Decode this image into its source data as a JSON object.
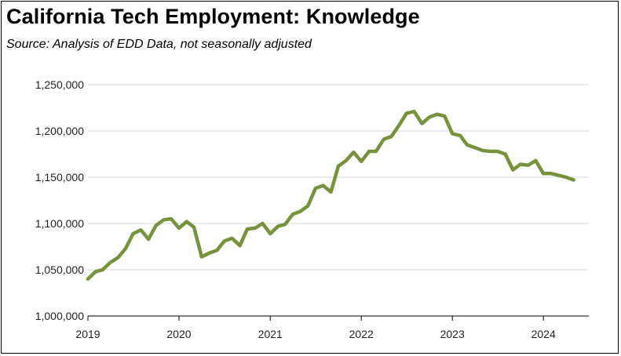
{
  "header": {
    "title": "California Tech Employment:  Knowledge",
    "subtitle": "Source:  Analysis of EDD Data, not seasonally adjusted"
  },
  "colors": {
    "line": "#76923C",
    "grid": "#D9D9D9",
    "axis": "#000000"
  },
  "chart_data": {
    "type": "line",
    "title": "California Tech Employment:  Knowledge",
    "subtitle": "Source:  Analysis of EDD Data, not seasonally adjusted",
    "xlabel": "",
    "ylabel": "",
    "ylim": [
      1000000,
      1250000
    ],
    "yticks": [
      1000000,
      1050000,
      1100000,
      1150000,
      1200000,
      1250000
    ],
    "ytick_labels": [
      "1,000,000",
      "1,050,000",
      "1,100,000",
      "1,150,000",
      "1,200,000",
      "1,250,000"
    ],
    "xticks": [
      2019,
      2020,
      2021,
      2022,
      2023,
      2024
    ],
    "xtick_labels": [
      "2019",
      "2020",
      "2021",
      "2022",
      "2023",
      "2024"
    ],
    "grid": "horizontal",
    "legend": "none",
    "series": [
      {
        "x": [
          "2019-01",
          "2019-02",
          "2019-03",
          "2019-04",
          "2019-05",
          "2019-06",
          "2019-07",
          "2019-08",
          "2019-09",
          "2019-10",
          "2019-11",
          "2019-12",
          "2020-01",
          "2020-02",
          "2020-03",
          "2020-04",
          "2020-05",
          "2020-06",
          "2020-07",
          "2020-08",
          "2020-09",
          "2020-10",
          "2020-11",
          "2020-12",
          "2021-01",
          "2021-02",
          "2021-03",
          "2021-04",
          "2021-05",
          "2021-06",
          "2021-07",
          "2021-08",
          "2021-09",
          "2021-10",
          "2021-11",
          "2021-12",
          "2022-01",
          "2022-02",
          "2022-03",
          "2022-04",
          "2022-05",
          "2022-06",
          "2022-07",
          "2022-08",
          "2022-09",
          "2022-10",
          "2022-11",
          "2022-12",
          "2023-01",
          "2023-02",
          "2023-03",
          "2023-04",
          "2023-05",
          "2023-06",
          "2023-07",
          "2023-08",
          "2023-09",
          "2023-10",
          "2023-11",
          "2023-12",
          "2024-01",
          "2024-02",
          "2024-03",
          "2024-04",
          "2024-05"
        ],
        "values": [
          1040000,
          1048000,
          1050000,
          1058000,
          1063000,
          1073000,
          1089000,
          1093000,
          1083000,
          1098000,
          1104000,
          1105000,
          1095000,
          1102000,
          1096000,
          1064000,
          1068000,
          1071000,
          1081000,
          1084000,
          1076000,
          1094000,
          1095000,
          1100000,
          1089000,
          1097000,
          1099000,
          1110000,
          1113000,
          1119000,
          1138000,
          1141000,
          1134000,
          1162000,
          1168000,
          1177000,
          1167000,
          1178000,
          1178000,
          1191000,
          1194000,
          1206000,
          1219000,
          1221000,
          1208000,
          1215000,
          1218000,
          1216000,
          1197000,
          1195000,
          1185000,
          1182000,
          1179000,
          1178000,
          1178000,
          1175000,
          1158000,
          1164000,
          1163000,
          1168000,
          1154000,
          1154000,
          1152000,
          1150000,
          1147000
        ]
      }
    ]
  }
}
